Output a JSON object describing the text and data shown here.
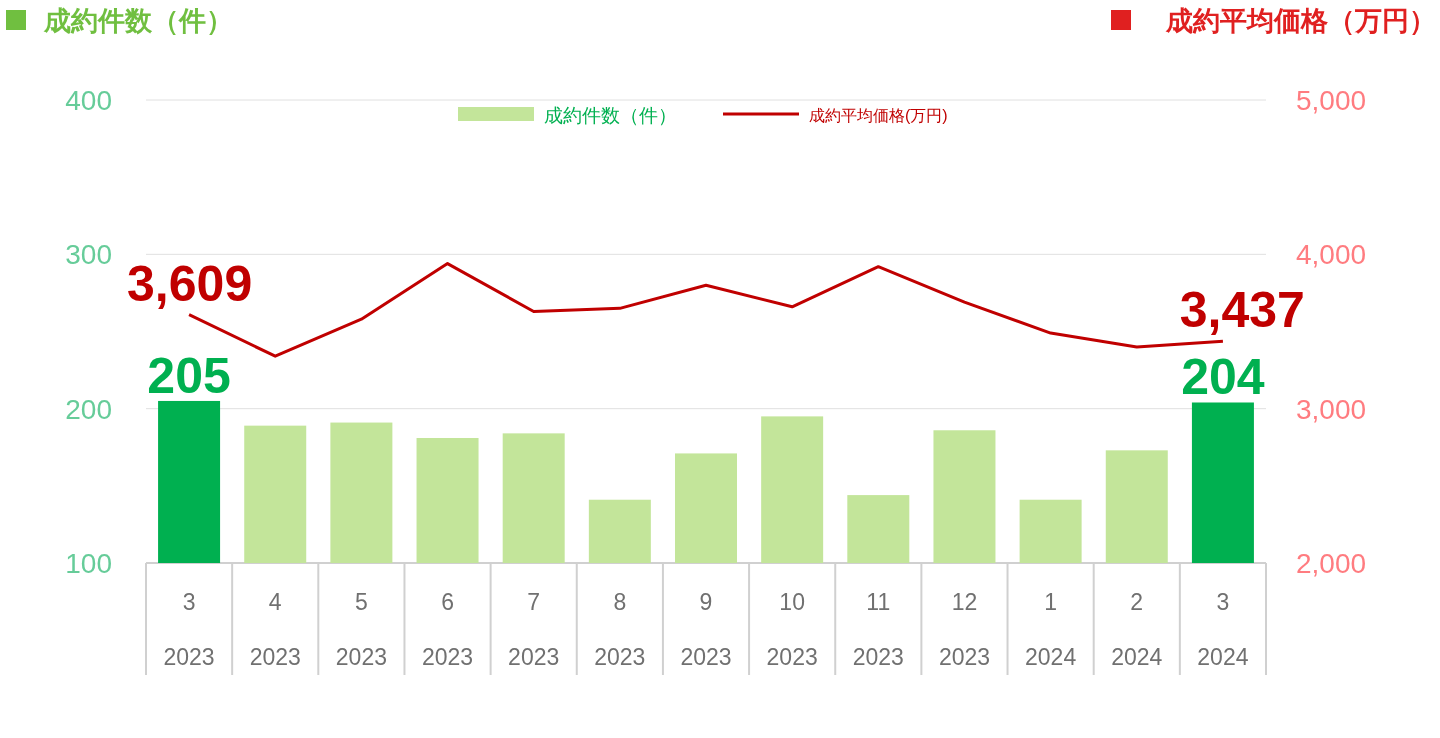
{
  "chart_data": {
    "type": "bar",
    "ylabel": "成約件数（件）",
    "y2label": "成約平均価格（万円）",
    "categories": [
      "3\n2023",
      "4\n2023",
      "5\n2023",
      "6\n2023",
      "7\n2023",
      "8\n2023",
      "9\n2023",
      "10\n2023",
      "11\n2023",
      "12\n2023",
      "1\n2024",
      "2\n2024",
      "3\n2024"
    ],
    "series": [
      {
        "name": "成約件数（件）",
        "color": "#c3e59a",
        "colors": [
          "#00b050",
          "#c3e59a",
          "#c3e59a",
          "#c3e59a",
          "#c3e59a",
          "#c3e59a",
          "#c3e59a",
          "#c3e59a",
          "#c3e59a",
          "#c3e59a",
          "#c3e59a",
          "#c3e59a",
          "#00b050"
        ],
        "values": [
          205,
          189,
          191,
          181,
          184,
          141,
          171,
          195,
          144,
          186,
          141,
          173,
          204
        ],
        "value_labels": [
          "205",
          null,
          null,
          null,
          null,
          null,
          null,
          null,
          null,
          null,
          null,
          null,
          "204"
        ]
      },
      {
        "name": "成約平均価格(万円)",
        "type": "line",
        "axis": "y2",
        "color": "#c00000",
        "values": [
          3609,
          3340,
          3580,
          3940,
          3630,
          3650,
          3800,
          3660,
          3920,
          3690,
          3490,
          3400,
          3437
        ],
        "value_labels": [
          "3,609",
          null,
          null,
          null,
          null,
          null,
          null,
          null,
          null,
          null,
          null,
          null,
          "3,437"
        ]
      }
    ],
    "ylim": [
      100,
      400
    ],
    "yticks": [
      100,
      200,
      300,
      400
    ],
    "y2lim": [
      2000,
      5000
    ],
    "y2ticks": [
      {
        "value": 2000,
        "label": "2,000"
      },
      {
        "value": 3000,
        "label": "3,000"
      },
      {
        "value": 4000,
        "label": "4,000"
      },
      {
        "value": 5000,
        "label": "5,000"
      }
    ],
    "grid": "y",
    "legend": "top"
  }
}
